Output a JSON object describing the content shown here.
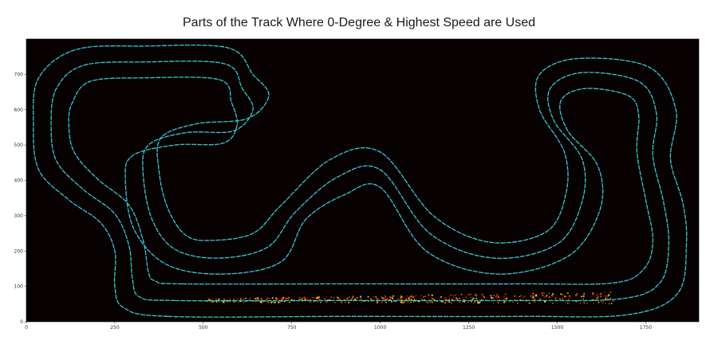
{
  "chart_data": {
    "type": "scatter",
    "title": "Parts of the Track Where 0-Degree & Highest Speed are Used",
    "xlabel": "",
    "ylabel": "",
    "xlim": [
      0,
      1900
    ],
    "ylim": [
      0,
      800
    ],
    "x_ticks": [
      0,
      250,
      500,
      750,
      1000,
      1250,
      1500,
      1750
    ],
    "y_ticks": [
      0,
      100,
      200,
      300,
      400,
      500,
      600,
      700
    ],
    "grid": false,
    "background": "#080101",
    "series": [
      {
        "color": "#35c8d4",
        "points": [
          [
            400,
            15
          ],
          [
            900,
            15
          ],
          [
            1400,
            15
          ],
          [
            1700,
            20
          ],
          [
            1840,
            80
          ],
          [
            1865,
            220
          ],
          [
            1855,
            335
          ],
          [
            1820,
            460
          ],
          [
            1835,
            600
          ],
          [
            1760,
            720
          ],
          [
            1560,
            745
          ],
          [
            1450,
            700
          ],
          [
            1450,
            600
          ],
          [
            1520,
            480
          ],
          [
            1525,
            365
          ],
          [
            1470,
            255
          ],
          [
            1310,
            225
          ],
          [
            1150,
            300
          ],
          [
            1000,
            480
          ],
          [
            860,
            460
          ],
          [
            720,
            330
          ],
          [
            640,
            250
          ],
          [
            520,
            230
          ],
          [
            450,
            245
          ],
          [
            400,
            320
          ],
          [
            375,
            425
          ],
          [
            380,
            520
          ],
          [
            480,
            560
          ],
          [
            625,
            575
          ],
          [
            685,
            640
          ],
          [
            640,
            700
          ],
          [
            570,
            775
          ],
          [
            330,
            780
          ],
          [
            140,
            770
          ],
          [
            35,
            690
          ],
          [
            20,
            560
          ],
          [
            35,
            430
          ],
          [
            120,
            345
          ],
          [
            210,
            280
          ],
          [
            250,
            200
          ],
          [
            250,
            100
          ],
          [
            275,
            40
          ],
          [
            400,
            15
          ]
        ]
      },
      {
        "color": "#35c8d4",
        "points": [
          [
            420,
            60
          ],
          [
            900,
            60
          ],
          [
            1400,
            60
          ],
          [
            1680,
            65
          ],
          [
            1790,
            110
          ],
          [
            1815,
            220
          ],
          [
            1800,
            340
          ],
          [
            1770,
            470
          ],
          [
            1780,
            590
          ],
          [
            1730,
            680
          ],
          [
            1570,
            705
          ],
          [
            1480,
            660
          ],
          [
            1490,
            570
          ],
          [
            1570,
            460
          ],
          [
            1570,
            340
          ],
          [
            1500,
            220
          ],
          [
            1320,
            180
          ],
          [
            1140,
            250
          ],
          [
            1000,
            430
          ],
          [
            880,
            410
          ],
          [
            760,
            310
          ],
          [
            680,
            210
          ],
          [
            540,
            180
          ],
          [
            420,
            205
          ],
          [
            355,
            290
          ],
          [
            330,
            420
          ],
          [
            345,
            500
          ],
          [
            450,
            535
          ],
          [
            585,
            540
          ],
          [
            640,
            600
          ],
          [
            610,
            660
          ],
          [
            560,
            730
          ],
          [
            330,
            735
          ],
          [
            160,
            725
          ],
          [
            85,
            660
          ],
          [
            70,
            560
          ],
          [
            85,
            455
          ],
          [
            160,
            375
          ],
          [
            250,
            305
          ],
          [
            290,
            215
          ],
          [
            300,
            120
          ],
          [
            320,
            70
          ],
          [
            420,
            60
          ]
        ]
      },
      {
        "color": "#35c8d4",
        "points": [
          [
            440,
            107
          ],
          [
            900,
            107
          ],
          [
            1400,
            107
          ],
          [
            1660,
            110
          ],
          [
            1745,
            150
          ],
          [
            1770,
            230
          ],
          [
            1750,
            345
          ],
          [
            1725,
            480
          ],
          [
            1730,
            585
          ],
          [
            1700,
            640
          ],
          [
            1580,
            660
          ],
          [
            1510,
            625
          ],
          [
            1530,
            540
          ],
          [
            1615,
            440
          ],
          [
            1620,
            315
          ],
          [
            1530,
            185
          ],
          [
            1330,
            135
          ],
          [
            1130,
            200
          ],
          [
            1000,
            380
          ],
          [
            900,
            360
          ],
          [
            790,
            290
          ],
          [
            720,
            170
          ],
          [
            560,
            135
          ],
          [
            400,
            160
          ],
          [
            305,
            260
          ],
          [
            280,
            400
          ],
          [
            300,
            470
          ],
          [
            420,
            500
          ],
          [
            555,
            505
          ],
          [
            595,
            555
          ],
          [
            580,
            620
          ],
          [
            545,
            685
          ],
          [
            330,
            690
          ],
          [
            180,
            680
          ],
          [
            130,
            620
          ],
          [
            120,
            560
          ],
          [
            135,
            480
          ],
          [
            200,
            405
          ],
          [
            290,
            330
          ],
          [
            330,
            230
          ],
          [
            345,
            140
          ],
          [
            365,
            115
          ],
          [
            440,
            107
          ]
        ]
      }
    ],
    "heat_band": {
      "colors": [
        "#ff3300",
        "#ff8800",
        "#ffdd55"
      ],
      "x_range": [
        510,
        1660
      ],
      "y_center": 60,
      "y_spread": 10
    }
  }
}
